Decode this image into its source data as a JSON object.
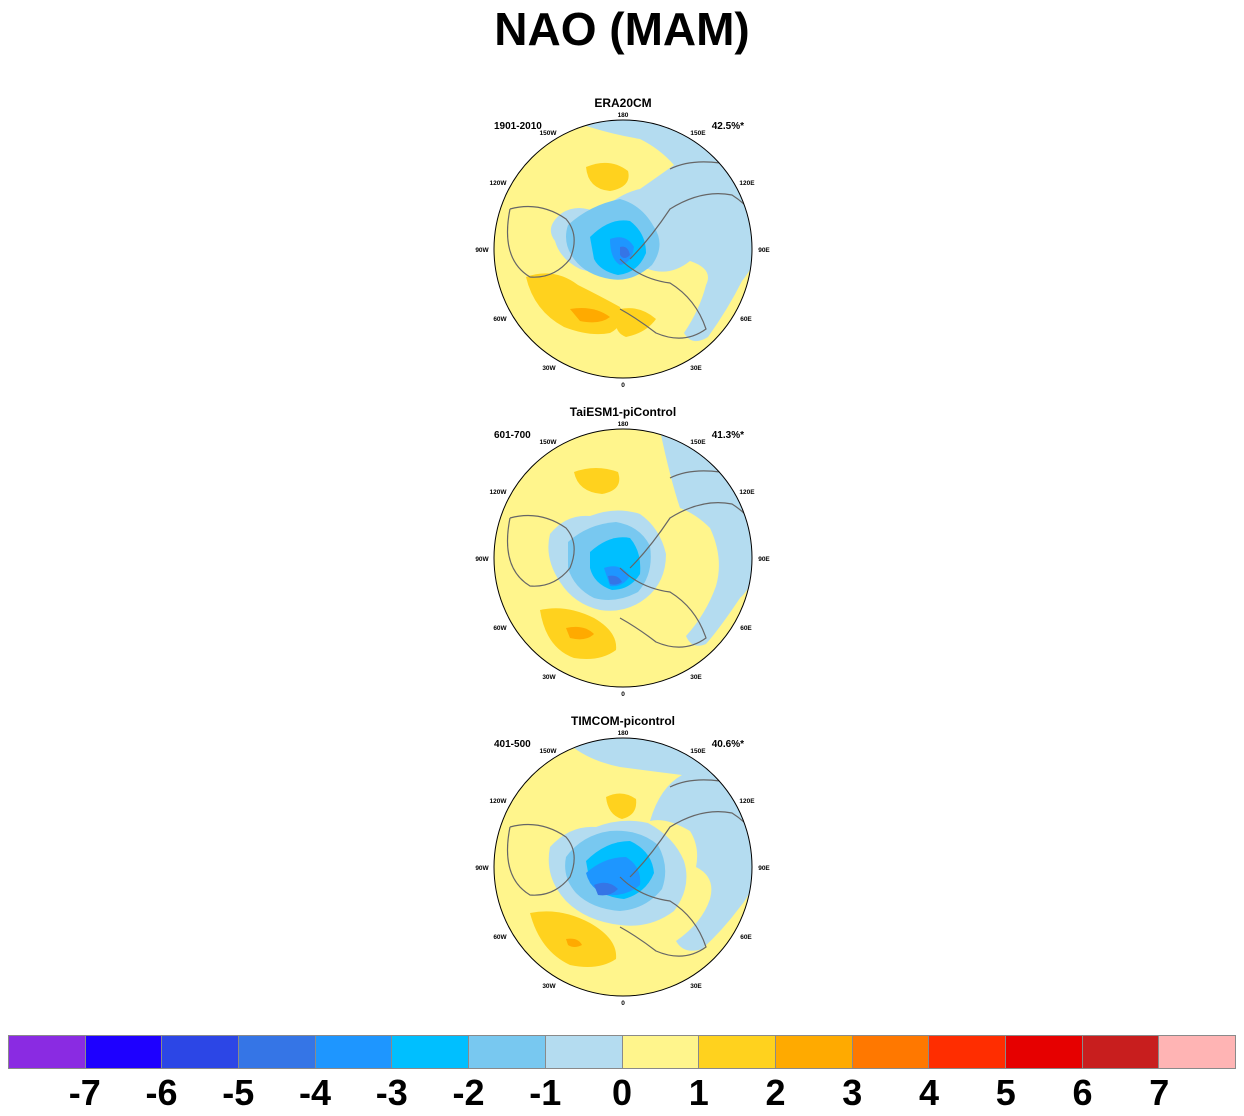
{
  "title": "NAO (MAM)",
  "panels": [
    {
      "name": "ERA20CM",
      "period": "1901-2010",
      "variance": "42.5%*"
    },
    {
      "name": "TaiESM1-piControl",
      "period": "601-700",
      "variance": "41.3%*"
    },
    {
      "name": "TIMCOM-picontrol",
      "period": "401-500",
      "variance": "40.6%*"
    }
  ],
  "longitude_labels": [
    "180",
    "150E",
    "120E",
    "90E",
    "60E",
    "30E",
    "0",
    "30W",
    "60W",
    "90W",
    "120W",
    "150W"
  ],
  "colorbar": {
    "colors": [
      "#8a2be2",
      "#1e00ff",
      "#2c46e6",
      "#3575e6",
      "#1e96ff",
      "#00bfff",
      "#78c8f0",
      "#b4dcf0",
      "#fff58c",
      "#ffd21e",
      "#ffaa00",
      "#ff7800",
      "#ff2d00",
      "#e60000",
      "#c81e1e",
      "#ffb4b4"
    ],
    "labels": [
      "-7",
      "-6",
      "-5",
      "-4",
      "-3",
      "-2",
      "-1",
      "0",
      "1",
      "2",
      "3",
      "4",
      "5",
      "6",
      "7"
    ]
  }
}
